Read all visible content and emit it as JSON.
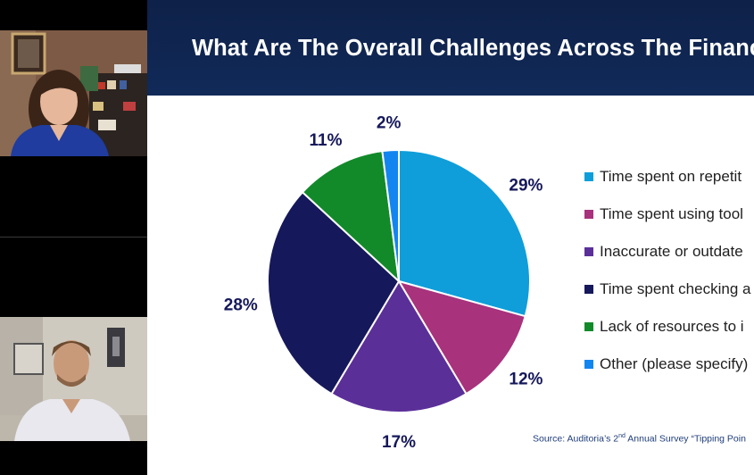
{
  "slide": {
    "title": "What Are The Overall Challenges Across The Financ",
    "source_prefix": "Source: Auditoria’s 2",
    "source_sup": "nd",
    "source_suffix": " Annual Survey “Tipping Poin"
  },
  "chart_data": {
    "type": "pie",
    "title": "",
    "slices": [
      {
        "name": "Time spent on repetit",
        "value": 29,
        "label": "29%",
        "color": "#0f9ed9"
      },
      {
        "name": "Time spent using tool",
        "value": 12,
        "label": "12%",
        "color": "#a8327c"
      },
      {
        "name": "Inaccurate or outdate",
        "value": 17,
        "label": "17%",
        "color": "#5b2f98"
      },
      {
        "name": "Time spent checking a",
        "value": 28,
        "label": "28%",
        "color": "#15185a"
      },
      {
        "name": "Lack of resources to i",
        "value": 11,
        "label": "11%",
        "color": "#128a2a"
      },
      {
        "name": "Other (please specify)",
        "value": 2,
        "label": "2%",
        "color": "#1385f0"
      }
    ],
    "legend_position": "right"
  },
  "participants": [
    {
      "name": "participant-woman"
    },
    {
      "name": "participant-man"
    }
  ]
}
